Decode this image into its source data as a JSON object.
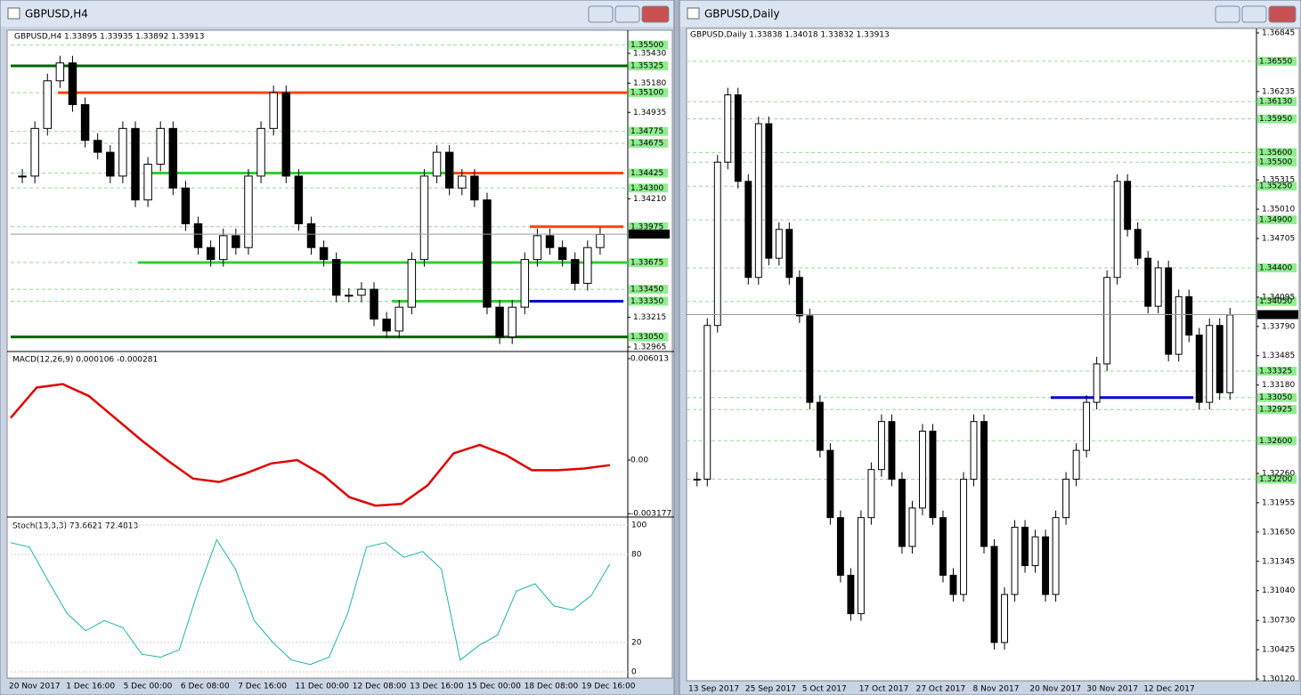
{
  "windows": [
    {
      "title": "GBPUSD,H4",
      "header": "GBPUSD,H4  1.33895 1.33935 1.33892 1.33913",
      "price_ticks": [
        {
          "value": 1.3543,
          "label": "1.35430"
        },
        {
          "value": 1.3518,
          "label": "1.35180"
        },
        {
          "value": 1.34935,
          "label": "1.34935"
        },
        {
          "value": 1.3421,
          "label": "1.34210"
        },
        {
          "value": 1.33215,
          "label": "1.33215"
        },
        {
          "value": 1.32965,
          "label": "1.32965"
        }
      ],
      "levels": [
        {
          "value": 1.355,
          "label": "1.35500"
        },
        {
          "value": 1.35325,
          "label": "1.35325"
        },
        {
          "value": 1.351,
          "label": "1.35100"
        },
        {
          "value": 1.34775,
          "label": "1.34775"
        },
        {
          "value": 1.34675,
          "label": "1.34675"
        },
        {
          "value": 1.34425,
          "label": "1.34425"
        },
        {
          "value": 1.343,
          "label": "1.34300"
        },
        {
          "value": 1.33975,
          "label": "1.33975"
        },
        {
          "value": 1.33675,
          "label": "1.33675"
        },
        {
          "value": 1.3345,
          "label": "1.33450"
        },
        {
          "value": 1.3335,
          "label": "1.33350"
        },
        {
          "value": 1.3305,
          "label": "1.33050"
        }
      ],
      "current": {
        "value": 1.33913,
        "label": "1.33913"
      },
      "lines": [
        {
          "value": 1.35325,
          "color": "#006400"
        },
        {
          "value": 1.351,
          "color": "#ff4500"
        },
        {
          "value": 1.34425,
          "color": "#32cd32"
        },
        {
          "value": 1.34425,
          "color": "#ff4500"
        },
        {
          "value": 1.33975,
          "color": "#ff4500"
        },
        {
          "value": 1.33675,
          "color": "#32cd32"
        },
        {
          "value": 1.3335,
          "color": "#32cd32"
        },
        {
          "value": 1.3335,
          "color": "#0000cd"
        },
        {
          "value": 1.3305,
          "color": "#006400"
        }
      ],
      "closes": [
        1.344,
        1.348,
        1.352,
        1.3535,
        1.35,
        1.347,
        1.346,
        1.344,
        1.348,
        1.342,
        1.345,
        1.348,
        1.343,
        1.34,
        1.338,
        1.337,
        1.339,
        1.338,
        1.344,
        1.348,
        1.351,
        1.344,
        1.34,
        1.338,
        1.337,
        1.334,
        1.334,
        1.3345,
        1.332,
        1.331,
        1.333,
        1.337,
        1.344,
        1.346,
        1.343,
        1.344,
        1.342,
        1.333,
        1.3305,
        1.333,
        1.337,
        1.339,
        1.338,
        1.337,
        1.335,
        1.338,
        1.3391
      ],
      "macd_label": "MACD(12,26,9) 0.000106 -0.000281",
      "macd_ticks": [
        {
          "value": 0.006013,
          "label": "0.006013"
        },
        {
          "value": 0,
          "label": "0.00"
        },
        {
          "value": -0.003177,
          "label": "-0.003177"
        }
      ],
      "macd_signal": [
        0.0025,
        0.0043,
        0.0045,
        0.0038,
        0.0025,
        0.0012,
        0.0,
        -0.0011,
        -0.0013,
        -0.0008,
        -0.0002,
        0.0,
        -0.0009,
        -0.0022,
        -0.0027,
        -0.0026,
        -0.0015,
        0.0004,
        0.0009,
        0.0003,
        -0.0006,
        -0.0006,
        -0.0005,
        -0.0003
      ],
      "stoch_label": "Stoch(13,3,3) 73.6621 72.4813",
      "stoch_ticks": [
        100,
        80,
        20,
        0
      ],
      "stoch": [
        88,
        85,
        62,
        40,
        28,
        35,
        30,
        12,
        10,
        15,
        55,
        90,
        70,
        35,
        20,
        8,
        5,
        10,
        40,
        85,
        88,
        78,
        82,
        70,
        8,
        18,
        25,
        55,
        60,
        45,
        42,
        52,
        73.66
      ],
      "dates": [
        "20 Nov 2017",
        "1 Dec 16:00",
        "5 Dec 00:00",
        "6 Dec 08:00",
        "7 Dec 16:00",
        "11 Dec 00:00",
        "12 Dec 08:00",
        "13 Dec 16:00",
        "15 Dec 00:00",
        "18 Dec 08:00",
        "19 Dec 16:00"
      ]
    },
    {
      "title": "GBPUSD,Daily",
      "header": "GBPUSD,Daily  1.33838 1.34018 1.33832 1.33913",
      "price_ticks": [
        {
          "value": 1.36845,
          "label": "1.36845"
        },
        {
          "value": 1.36235,
          "label": "1.36235"
        },
        {
          "value": 1.35315,
          "label": "1.35315"
        },
        {
          "value": 1.3501,
          "label": "1.35010"
        },
        {
          "value": 1.34705,
          "label": "1.34705"
        },
        {
          "value": 1.34095,
          "label": "1.34095"
        },
        {
          "value": 1.3379,
          "label": "1.33790"
        },
        {
          "value": 1.33485,
          "label": "1.33485"
        },
        {
          "value": 1.3318,
          "label": "1.33180"
        },
        {
          "value": 1.3226,
          "label": "1.32260"
        },
        {
          "value": 1.31955,
          "label": "1.31955"
        },
        {
          "value": 1.3165,
          "label": "1.31650"
        },
        {
          "value": 1.31345,
          "label": "1.31345"
        },
        {
          "value": 1.3104,
          "label": "1.31040"
        },
        {
          "value": 1.3073,
          "label": "1.30730"
        },
        {
          "value": 1.30425,
          "label": "1.30425"
        },
        {
          "value": 1.3012,
          "label": "1.30120"
        }
      ],
      "levels": [
        {
          "value": 1.3655,
          "label": "1.36550"
        },
        {
          "value": 1.3613,
          "label": "1.36130"
        },
        {
          "value": 1.3595,
          "label": "1.35950"
        },
        {
          "value": 1.356,
          "label": "1.35600"
        },
        {
          "value": 1.355,
          "label": "1.35500"
        },
        {
          "value": 1.3525,
          "label": "1.35250"
        },
        {
          "value": 1.349,
          "label": "1.34900"
        },
        {
          "value": 1.344,
          "label": "1.34400"
        },
        {
          "value": 1.3405,
          "label": "1.34050"
        },
        {
          "value": 1.33325,
          "label": "1.33325"
        },
        {
          "value": 1.3305,
          "label": "1.33050"
        },
        {
          "value": 1.32925,
          "label": "1.32925"
        },
        {
          "value": 1.326,
          "label": "1.32600"
        },
        {
          "value": 1.322,
          "label": "1.32200"
        }
      ],
      "current": {
        "value": 1.33913,
        "label": "1.33913"
      },
      "lines": [
        {
          "value": 1.3305,
          "color": "#0000cd"
        }
      ],
      "closes": [
        1.322,
        1.338,
        1.355,
        1.362,
        1.353,
        1.343,
        1.359,
        1.345,
        1.348,
        1.343,
        1.339,
        1.33,
        1.325,
        1.318,
        1.312,
        1.308,
        1.318,
        1.323,
        1.328,
        1.322,
        1.315,
        1.319,
        1.327,
        1.318,
        1.312,
        1.31,
        1.322,
        1.328,
        1.315,
        1.305,
        1.31,
        1.317,
        1.313,
        1.316,
        1.31,
        1.318,
        1.322,
        1.325,
        1.33,
        1.334,
        1.343,
        1.353,
        1.348,
        1.345,
        1.34,
        1.344,
        1.335,
        1.341,
        1.337,
        1.33,
        1.338,
        1.331,
        1.3391
      ],
      "dates": [
        "13 Sep 2017",
        "25 Sep 2017",
        "5 Oct 2017",
        "17 Oct 2017",
        "27 Oct 2017",
        "8 Nov 2017",
        "20 Nov 2017",
        "30 Nov 2017",
        "12 Dec 2017"
      ]
    }
  ]
}
